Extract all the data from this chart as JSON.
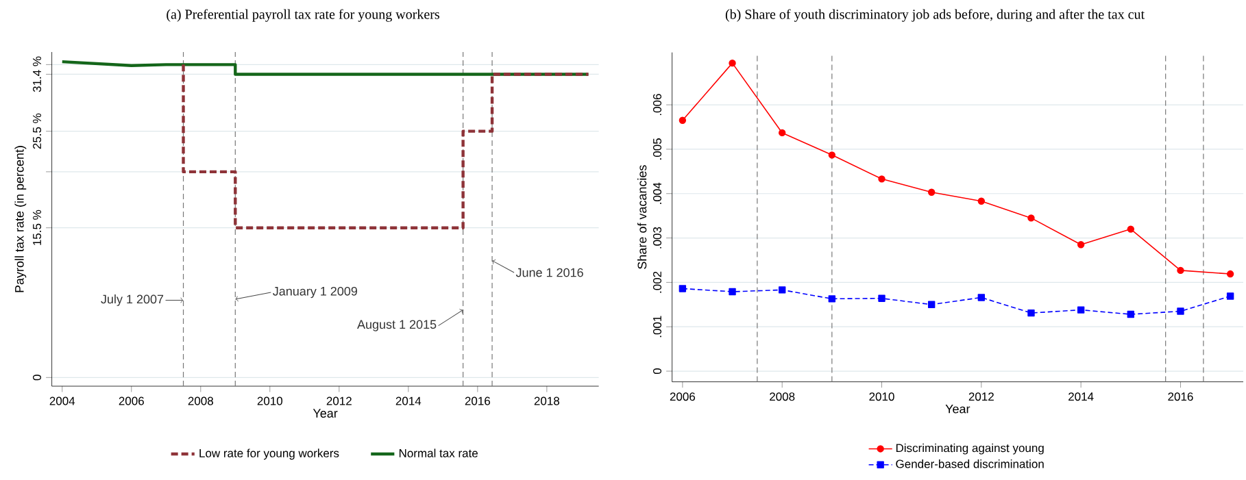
{
  "chart_data": [
    {
      "type": "line",
      "title": "(a) Preferential payroll tax rate for young workers",
      "xlabel": "Year",
      "ylabel": "Payroll tax rate (in percent)",
      "series": [
        {
          "name": "Low rate for young workers",
          "type": "step",
          "color": "#8e3338",
          "line_style": "dashed",
          "x": [
            2007.5,
            2007.5,
            2009,
            2015.58,
            2016.42,
            2019.2
          ],
          "values": [
            32.4,
            21.3,
            15.5,
            25.5,
            31.4,
            31.4
          ]
        },
        {
          "name": "Normal tax rate",
          "type": "line",
          "color": "#14661a",
          "line_style": "solid",
          "x": [
            2004,
            2006,
            2007,
            2009,
            2009,
            2019.2
          ],
          "values": [
            32.7,
            32.3,
            32.4,
            32.4,
            31.4,
            31.4
          ]
        }
      ],
      "xlim": [
        2003.7,
        2019.5
      ],
      "ylim": [
        -0.9,
        33.7
      ],
      "xticks": [
        2004,
        2006,
        2008,
        2010,
        2012,
        2014,
        2016,
        2018
      ],
      "yticks": [
        0,
        {
          "value": 15.5,
          "label": "15.5 %"
        },
        {
          "value": 21.3,
          "label": null
        },
        {
          "value": 25.5,
          "label": "25.5 %"
        },
        {
          "value": 31.4,
          "label": "31.4 %"
        },
        {
          "value": 32.4,
          "label": null
        }
      ],
      "ref_lines": [
        {
          "axis": "x",
          "value": 2007.5,
          "color": "#777777",
          "line_style": "dashed"
        },
        {
          "axis": "x",
          "value": 2009,
          "color": "#777777",
          "line_style": "dashed"
        },
        {
          "axis": "x",
          "value": 2015.58,
          "color": "#777777",
          "line_style": "dashed"
        },
        {
          "axis": "x",
          "value": 2016.42,
          "color": "#777777",
          "line_style": "dashed"
        }
      ],
      "annotations": [
        {
          "text": "July 1 2007",
          "x": 2007.5,
          "y": 8.0
        },
        {
          "text": "January 1 2009",
          "x": 2009,
          "y": 8.1
        },
        {
          "text": "August 1 2015",
          "x": 2015.58,
          "y": 7.0
        },
        {
          "text": "June 1 2016",
          "x": 2016.42,
          "y": 12.1
        }
      ],
      "grid": "y",
      "legend": "bottom",
      "marker": "none"
    },
    {
      "type": "line",
      "title": "(b) Share of youth discriminatory job ads before, during and after the tax cut",
      "xlabel": "Year",
      "ylabel": "Share of vacancies",
      "x": [
        2006,
        2007,
        2008,
        2009,
        2010,
        2011,
        2012,
        2013,
        2014,
        2015,
        2016,
        2017
      ],
      "series": [
        {
          "name": "Discriminating against young",
          "color": "#ff0000",
          "marker": "circle",
          "line_style": "solid",
          "values": [
            0.00565,
            0.00694,
            0.00537,
            0.00487,
            0.00433,
            0.00403,
            0.00383,
            0.00345,
            0.00285,
            0.0032,
            0.00227,
            0.00219
          ]
        },
        {
          "name": "Gender-based discrimination",
          "color": "#0000ff",
          "marker": "square",
          "line_style": "dashed",
          "values": [
            0.00186,
            0.00179,
            0.00183,
            0.00163,
            0.00164,
            0.0015,
            0.00166,
            0.00131,
            0.00138,
            0.00128,
            0.00135,
            0.00169
          ]
        }
      ],
      "xlim": [
        2005.79,
        2017.26
      ],
      "ylim": [
        -0.00024,
        0.00718
      ],
      "xticks": [
        2006,
        2008,
        2010,
        2012,
        2014,
        2016
      ],
      "yticks": [
        0,
        {
          "value": 0.001,
          "label": ".001"
        },
        {
          "value": 0.002,
          "label": ".002"
        },
        {
          "value": 0.003,
          "label": ".003"
        },
        {
          "value": 0.004,
          "label": ".004"
        },
        {
          "value": 0.005,
          "label": ".005"
        },
        {
          "value": 0.006,
          "label": ".006"
        }
      ],
      "ref_lines": [
        {
          "axis": "x",
          "value": 2007.5,
          "color": "#777777",
          "line_style": "dashed"
        },
        {
          "axis": "x",
          "value": 2009,
          "color": "#777777",
          "line_style": "dashed"
        },
        {
          "axis": "x",
          "value": 2015.7,
          "color": "#777777",
          "line_style": "dashed"
        },
        {
          "axis": "x",
          "value": 2016.46,
          "color": "#777777",
          "line_style": "dashed"
        }
      ],
      "grid": "y",
      "legend": "bottom"
    }
  ]
}
